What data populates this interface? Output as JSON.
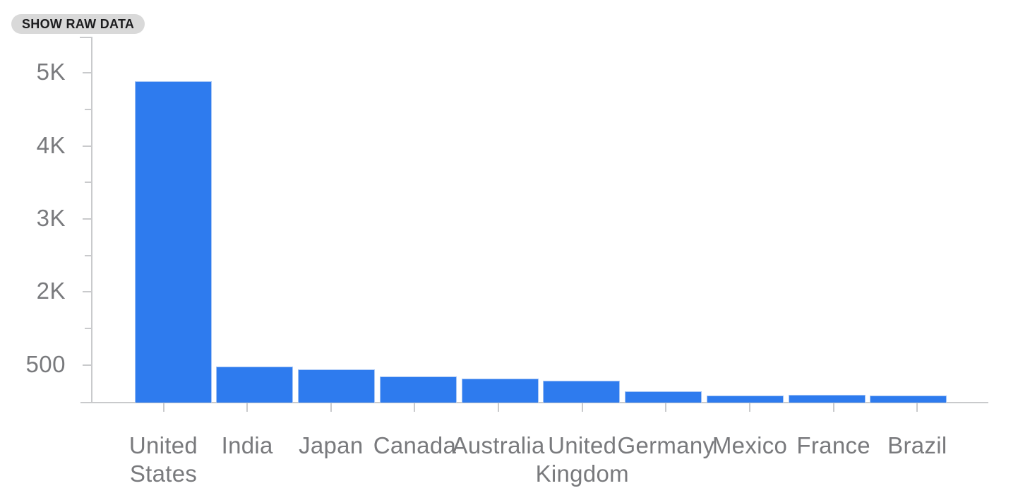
{
  "toolbar": {
    "show_raw_data_label": "SHOW RAW DATA"
  },
  "chart_data": {
    "type": "bar",
    "title": "",
    "xlabel": "",
    "ylabel": "",
    "categories": [
      "United States",
      "India",
      "Japan",
      "Canada",
      "Australia",
      "United Kingdom",
      "Germany",
      "Mexico",
      "France",
      "Brazil"
    ],
    "values": [
      4890,
      478,
      440,
      342,
      310,
      285,
      136,
      80,
      90,
      80
    ],
    "y_axis": {
      "tick_labels": [
        "500",
        "2K",
        "3K",
        "4K",
        "5K"
      ],
      "tick_values": [
        500,
        2000,
        3000,
        4000,
        5000
      ],
      "minor_ticks": true,
      "baseline_value": 0,
      "top_value": 5500
    },
    "grid": false,
    "legend": false,
    "colors": {
      "bar_fill": "#2e7bee",
      "bar_border": "#a7c6f5",
      "axis": "#c9cacc",
      "label_text": "#797a7d"
    }
  }
}
